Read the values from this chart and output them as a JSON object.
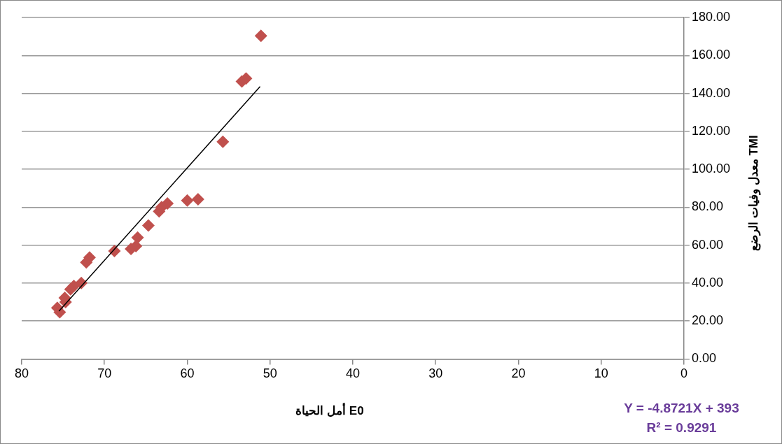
{
  "chart_data": {
    "type": "scatter",
    "xlabel": "أمل الحياة E0",
    "ylabel": "معدل وفيات الرضع TMI",
    "xlim": [
      80,
      0
    ],
    "xticks": [
      80,
      70,
      60,
      50,
      40,
      30,
      20,
      10,
      0
    ],
    "ylim": [
      0,
      180
    ],
    "yticks": [
      {
        "value": 0,
        "label": "0.00"
      },
      {
        "value": 20,
        "label": "20.00"
      },
      {
        "value": 40,
        "label": "40.00"
      },
      {
        "value": 60,
        "label": "60.00"
      },
      {
        "value": 80,
        "label": "80.00"
      },
      {
        "value": 100,
        "label": "100.00"
      },
      {
        "value": 120,
        "label": "120.00"
      },
      {
        "value": 140,
        "label": "140.00"
      },
      {
        "value": 160,
        "label": "160.00"
      },
      {
        "value": 180,
        "label": "180.00"
      }
    ],
    "grid": "y",
    "marker": "diamond",
    "series": [
      {
        "color": "#c0504d",
        "x": [
          51.1,
          52.9,
          53.4,
          55.7,
          58.7,
          60.0,
          62.4,
          63.1,
          63.4,
          64.7,
          66.0,
          66.2,
          66.8,
          68.8,
          71.8,
          72.2,
          72.8,
          73.7,
          74.1,
          74.8,
          74.7,
          75.7,
          75.4
        ],
        "values": [
          170.3,
          147.8,
          146.3,
          114.5,
          84.2,
          83.5,
          82,
          80,
          77.8,
          70.4,
          64,
          59.5,
          58,
          56.9,
          53.5,
          50.9,
          40,
          38.5,
          36.7,
          32.2,
          30,
          27,
          24.7
        ]
      },
      {
        "type": "line",
        "marker": "none",
        "color": "#000000",
        "x": [
          75.5,
          51.2
        ],
        "values": [
          25.2,
          143.6
        ]
      }
    ],
    "annotations": [
      "Y = -4.8721X + 393",
      "R² = 0.9291"
    ]
  }
}
